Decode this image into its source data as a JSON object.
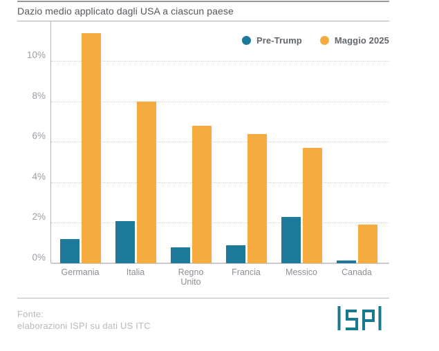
{
  "header": {
    "title": "Dazio medio applicato dagli USA a ciascun paese"
  },
  "footer": {
    "source_label": "Fonte:",
    "source_text": "elaborazioni ISPI su dati US ITC",
    "logo_text": "ISPI"
  },
  "colors": {
    "teal": "#1d7b99",
    "orange": "#f6ab40",
    "logo_teal": "#187a90",
    "grid": "#cdcfd2",
    "axis": "#b2b5b9"
  },
  "chart_data": {
    "type": "bar",
    "title": "Dazio medio applicato dagli USA a ciascun paese",
    "categories": [
      "Germania",
      "Italia",
      "Regno Unito",
      "Francia",
      "Messico",
      "Canada"
    ],
    "series": [
      {
        "name": "Pre-Trump",
        "color": "#1d7b99",
        "values": [
          1.2,
          2.1,
          0.8,
          0.9,
          2.3,
          0.15
        ]
      },
      {
        "name": "Maggio 2025",
        "color": "#f6ab40",
        "values": [
          11.4,
          8.0,
          6.8,
          6.4,
          5.7,
          1.9
        ]
      }
    ],
    "ylabel": "",
    "xlabel": "",
    "ylim": [
      0,
      11.7
    ],
    "yticks": [
      0,
      2,
      4,
      6,
      8,
      10
    ],
    "ytick_labels": [
      "0%",
      "2%",
      "4%",
      "6%",
      "8%",
      "10%"
    ],
    "grid": "horizontal-dotted",
    "legend_position": "top-right",
    "source": "Fonte: elaborazioni ISPI su dati US ITC"
  }
}
